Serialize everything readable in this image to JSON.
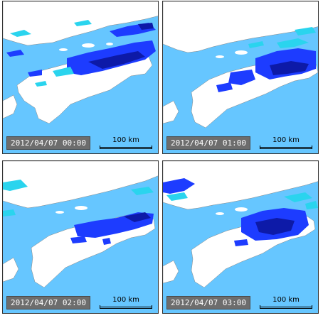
{
  "panels": [
    {
      "timestamp": "2012/04/07 00:00",
      "scale_label": "100 km"
    },
    {
      "timestamp": "2012/04/07 01:00",
      "scale_label": "100 km"
    },
    {
      "timestamp": "2012/04/07 02:00",
      "scale_label": "100 km"
    },
    {
      "timestamp": "2012/04/07 03:00",
      "scale_label": "100 km"
    }
  ],
  "colors": {
    "sea": "#66c6ff",
    "land": "#ffffff",
    "rain_light": "#2ad4ee",
    "rain_moderate": "#1d3cff",
    "rain_heavy": "#0d1aa8"
  }
}
